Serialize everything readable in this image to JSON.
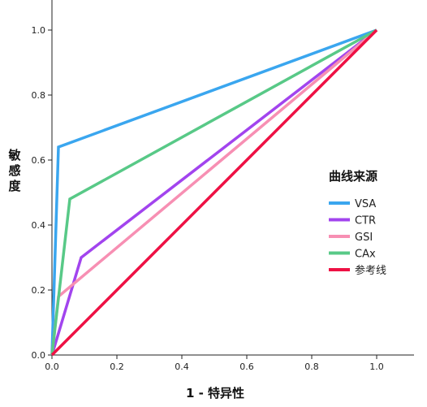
{
  "chart_data": {
    "type": "line",
    "xlabel": "1 - 特异性",
    "ylabel": "敏感度",
    "xlim": [
      0.0,
      1.1
    ],
    "ylim": [
      0.0,
      1.08
    ],
    "x_ticks": [
      0.0,
      0.2,
      0.4,
      0.6,
      0.8,
      1.0
    ],
    "y_ticks": [
      0.0,
      0.2,
      0.4,
      0.6,
      0.8,
      1.0
    ],
    "x_tick_labels": [
      "0.0",
      "0.2",
      "0.4",
      "0.6",
      "0.8",
      "1.0"
    ],
    "y_tick_labels": [
      "0.0",
      "0.2",
      "0.4",
      "0.6",
      "0.8",
      "1.0"
    ],
    "grid": false,
    "legend_title": "曲线来源",
    "legend_position": "right",
    "series": [
      {
        "name": "VSA",
        "color": "#3aa6ef",
        "points": [
          [
            0.0,
            0.0
          ],
          [
            0.02,
            0.64
          ],
          [
            1.0,
            1.0
          ]
        ]
      },
      {
        "name": "CTR",
        "color": "#a244ee",
        "points": [
          [
            0.0,
            0.0
          ],
          [
            0.09,
            0.3
          ],
          [
            1.0,
            1.0
          ]
        ]
      },
      {
        "name": "GSI",
        "color": "#f78fb3",
        "points": [
          [
            0.0,
            0.0
          ],
          [
            0.02,
            0.18
          ],
          [
            1.0,
            1.0
          ]
        ]
      },
      {
        "name": "CAx",
        "color": "#58c987",
        "points": [
          [
            0.0,
            0.0
          ],
          [
            0.055,
            0.48
          ],
          [
            1.0,
            1.0
          ]
        ]
      },
      {
        "name": "参考线",
        "color": "#ee1144",
        "points": [
          [
            0.0,
            0.0
          ],
          [
            1.0,
            1.0
          ]
        ]
      }
    ]
  }
}
